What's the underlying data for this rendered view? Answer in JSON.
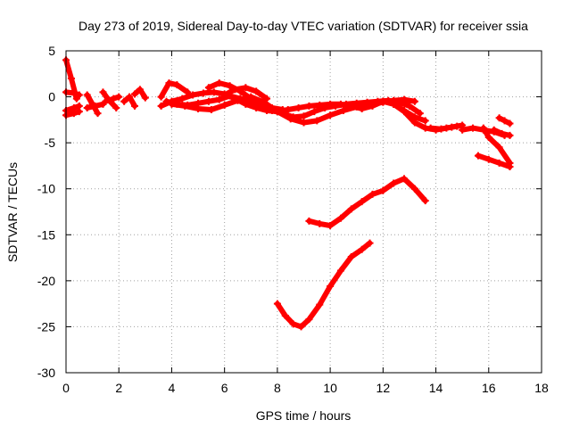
{
  "chart_data": {
    "type": "scatter",
    "title": "Day 273 of 2019, Sidereal Day-to-day VTEC variation (SDTVAR) for receiver ssia",
    "xlabel": "GPS time / hours",
    "ylabel": "SDTVAR / TECUs",
    "xlim": [
      0,
      18
    ],
    "ylim": [
      -30,
      5
    ],
    "xticks": [
      0,
      2,
      4,
      6,
      8,
      10,
      12,
      14,
      16,
      18
    ],
    "yticks": [
      5,
      0,
      -5,
      -10,
      -15,
      -20,
      -25,
      -30
    ],
    "xtick_labels": [
      "0",
      "2",
      "4",
      "6",
      "8",
      "10",
      "12",
      "14",
      "16",
      "18"
    ],
    "ytick_labels": [
      "5",
      "0",
      "-5",
      "-10",
      "-15",
      "-20",
      "-25",
      "-30"
    ],
    "grid": true,
    "marker_color": "#ff0000",
    "series": [
      {
        "name": "s1",
        "x": [
          0.0,
          0.2,
          0.4
        ],
        "y": [
          4.0,
          2.0,
          -0.2
        ]
      },
      {
        "name": "s2",
        "x": [
          0.0,
          0.3,
          0.5
        ],
        "y": [
          0.5,
          0.4,
          0.2
        ]
      },
      {
        "name": "s3",
        "x": [
          0.0,
          0.3,
          0.5
        ],
        "y": [
          -1.5,
          -1.2,
          -1.0
        ]
      },
      {
        "name": "s4",
        "x": [
          0.0,
          0.3,
          0.5
        ],
        "y": [
          -2.0,
          -1.8,
          -1.6
        ]
      },
      {
        "name": "s5",
        "x": [
          0.8,
          1.0,
          1.2
        ],
        "y": [
          0.2,
          -0.8,
          -1.8
        ]
      },
      {
        "name": "s6",
        "x": [
          0.8,
          1.1,
          1.4
        ],
        "y": [
          -1.2,
          -1.0,
          -0.8
        ]
      },
      {
        "name": "s7",
        "x": [
          1.4,
          1.6,
          1.9
        ],
        "y": [
          0.5,
          -0.3,
          -1.2
        ]
      },
      {
        "name": "s8",
        "x": [
          1.5,
          1.8,
          2.0
        ],
        "y": [
          -0.5,
          -0.2,
          0.0
        ]
      },
      {
        "name": "s9",
        "x": [
          2.2,
          2.4,
          2.6
        ],
        "y": [
          -0.5,
          0.0,
          -1.0
        ]
      },
      {
        "name": "s10",
        "x": [
          2.6,
          2.8,
          3.0
        ],
        "y": [
          0.3,
          0.8,
          -0.1
        ]
      },
      {
        "name": "s11",
        "x": [
          3.6,
          3.9,
          4.2,
          4.6
        ],
        "y": [
          0.0,
          1.5,
          1.3,
          0.5
        ]
      },
      {
        "name": "s12",
        "x": [
          3.8,
          4.2,
          4.6,
          5.0,
          5.4,
          5.8,
          6.2,
          6.6,
          7.0,
          7.4,
          7.8,
          8.2,
          8.6,
          9.0,
          9.4,
          9.8,
          10.2,
          10.6,
          11.0,
          11.4,
          11.8,
          12.2,
          12.6,
          13.0,
          13.4
        ],
        "y": [
          -0.5,
          -0.8,
          -0.9,
          -0.7,
          -0.5,
          -0.3,
          0.1,
          -0.2,
          -0.6,
          -1.0,
          -1.5,
          -1.8,
          -2.2,
          -2.1,
          -1.6,
          -1.2,
          -1.0,
          -0.8,
          -0.7,
          -0.6,
          -0.5,
          -0.4,
          -0.6,
          -1.0,
          -1.8
        ]
      },
      {
        "name": "s13",
        "x": [
          3.6,
          4.0,
          4.4,
          4.8,
          5.2,
          5.6,
          6.0,
          6.4,
          6.8,
          7.2,
          7.6,
          8.0,
          8.4,
          8.8,
          9.2,
          9.6,
          10.0,
          10.4,
          10.8,
          11.2,
          11.6,
          12.0
        ],
        "y": [
          -1.0,
          -0.5,
          -0.2,
          0.2,
          0.4,
          0.5,
          0.3,
          -0.2,
          -0.8,
          -1.2,
          -1.5,
          -1.6,
          -1.4,
          -1.2,
          -1.0,
          -0.9,
          -0.8,
          -0.8,
          -1.0,
          -1.3,
          -1.0,
          -0.5
        ]
      },
      {
        "name": "s14",
        "x": [
          4.0,
          4.5,
          5.0,
          5.5,
          6.0,
          6.5,
          7.0,
          7.5,
          8.0,
          8.5,
          9.0,
          9.5,
          10.0,
          10.5,
          11.0,
          11.5,
          12.0,
          12.4,
          12.8,
          13.2
        ],
        "y": [
          -0.8,
          -1.0,
          -1.3,
          -1.4,
          -0.9,
          -0.4,
          0.0,
          -0.6,
          -1.6,
          -2.4,
          -2.8,
          -2.6,
          -2.0,
          -1.5,
          -1.1,
          -0.8,
          -0.6,
          -0.4,
          -0.3,
          -0.5
        ]
      },
      {
        "name": "s15",
        "x": [
          5.4,
          5.8,
          6.2,
          6.6,
          7.0,
          7.4,
          7.8,
          8.2
        ],
        "y": [
          1.0,
          1.5,
          1.2,
          0.6,
          -0.2,
          -0.8,
          -1.2,
          -1.4
        ]
      },
      {
        "name": "s16",
        "x": [
          6.0,
          6.4,
          6.8,
          7.2,
          7.6
        ],
        "y": [
          0.2,
          0.8,
          1.0,
          0.6,
          -0.2
        ]
      },
      {
        "name": "s17",
        "x": [
          12.0,
          12.4,
          12.8,
          13.2,
          13.6
        ],
        "y": [
          -0.5,
          -0.8,
          -1.5,
          -2.2,
          -2.6
        ]
      },
      {
        "name": "s18",
        "x": [
          12.4,
          12.8,
          13.2,
          13.6,
          14.0,
          14.4,
          14.8
        ],
        "y": [
          -0.8,
          -1.6,
          -2.8,
          -3.4,
          -3.6,
          -3.4,
          -3.2
        ]
      },
      {
        "name": "s19",
        "x": [
          13.8,
          14.2,
          14.6,
          15.0
        ],
        "y": [
          -3.4,
          -3.5,
          -3.3,
          -3.1
        ]
      },
      {
        "name": "s20",
        "x": [
          15.0,
          15.4,
          15.8,
          16.2,
          16.6
        ],
        "y": [
          -3.6,
          -3.4,
          -3.6,
          -3.8,
          -4.2
        ]
      },
      {
        "name": "s21",
        "x": [
          15.8,
          16.0,
          16.4,
          16.8
        ],
        "y": [
          -3.4,
          -4.4,
          -5.5,
          -7.2
        ]
      },
      {
        "name": "s22",
        "x": [
          16.2,
          16.5,
          16.8
        ],
        "y": [
          -3.6,
          -4.0,
          -4.2
        ]
      },
      {
        "name": "s23",
        "x": [
          16.4,
          16.6,
          16.8
        ],
        "y": [
          -2.3,
          -2.6,
          -2.9
        ]
      },
      {
        "name": "s24",
        "x": [
          15.6,
          16.0,
          16.4,
          16.8
        ],
        "y": [
          -6.4,
          -6.8,
          -7.2,
          -7.6
        ]
      },
      {
        "name": "s25",
        "x": [
          9.2,
          9.6,
          10.0,
          10.4,
          10.8,
          11.2,
          11.6,
          12.0,
          12.4,
          12.8,
          13.2,
          13.6
        ],
        "y": [
          -13.5,
          -13.8,
          -14.0,
          -13.2,
          -12.2,
          -11.4,
          -10.6,
          -10.2,
          -9.4,
          -8.9,
          -10.0,
          -11.3
        ]
      },
      {
        "name": "s26",
        "x": [
          8.0,
          8.3,
          8.6,
          8.9,
          9.2,
          9.6,
          10.0,
          10.4,
          10.8,
          11.2,
          11.5
        ],
        "y": [
          -22.5,
          -23.8,
          -24.7,
          -25.0,
          -24.2,
          -22.6,
          -20.6,
          -18.9,
          -17.4,
          -16.6,
          -15.9
        ]
      }
    ]
  }
}
